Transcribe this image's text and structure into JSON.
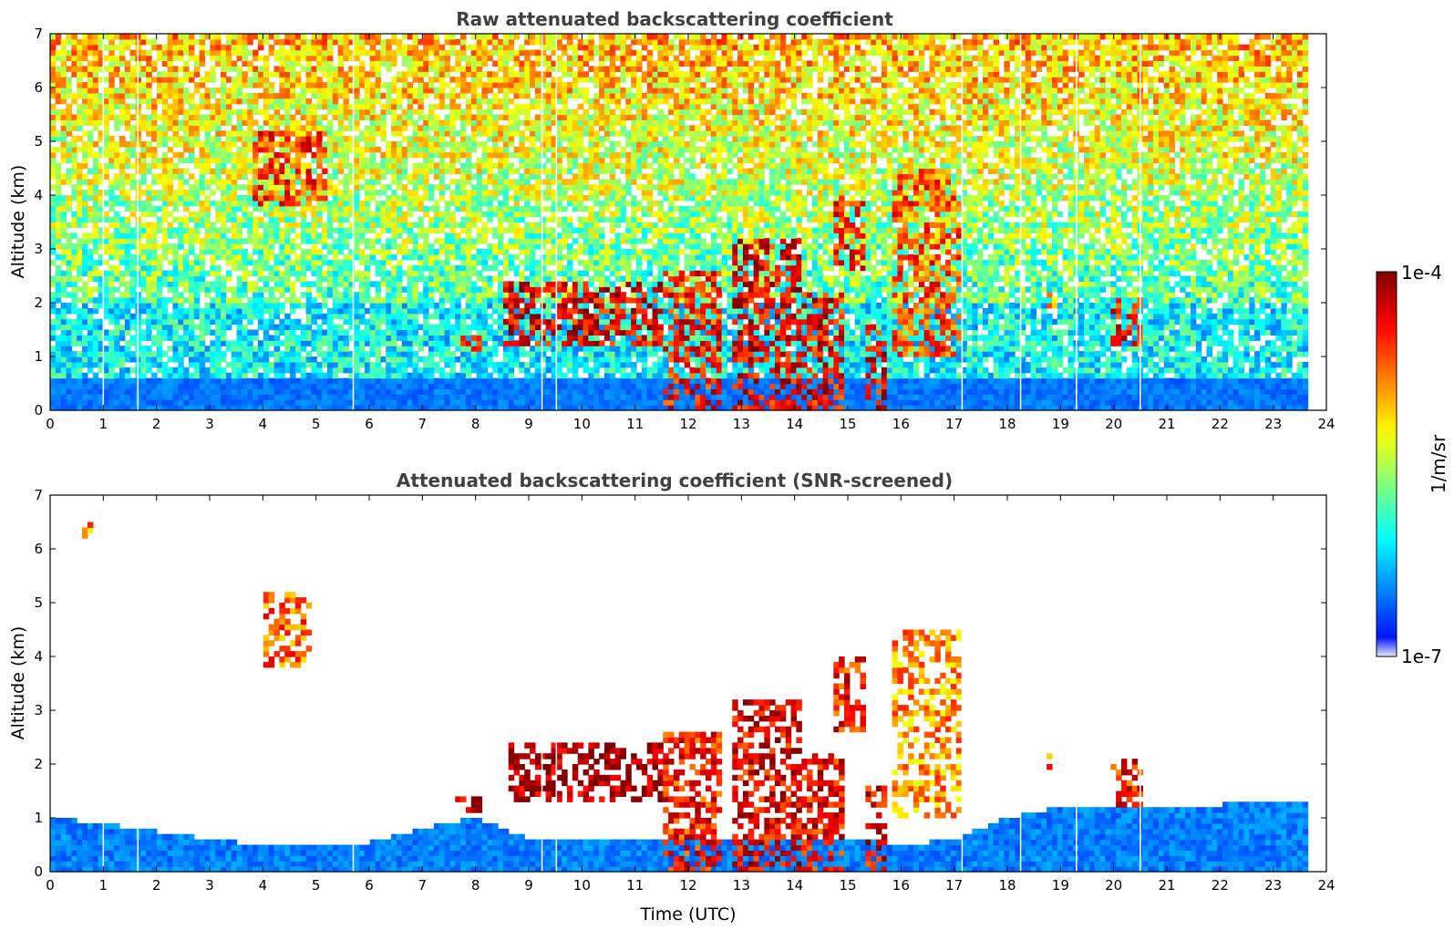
{
  "chart_data": [
    {
      "type": "heatmap",
      "title": "Raw attenuated backscattering coefficient",
      "xlabel": "",
      "ylabel": "Altitude (km)",
      "xlim": [
        0,
        24
      ],
      "ylim": [
        0,
        7
      ],
      "xticks": [
        "0",
        "1",
        "2",
        "3",
        "4",
        "5",
        "6",
        "7",
        "8",
        "9",
        "10",
        "11",
        "12",
        "13",
        "14",
        "15",
        "16",
        "17",
        "18",
        "19",
        "20",
        "21",
        "22",
        "23",
        "24"
      ],
      "yticks": [
        "0",
        "1",
        "2",
        "3",
        "4",
        "5",
        "6",
        "7"
      ],
      "data_end_hour": 23.65,
      "gaps_hours": [
        1.0,
        1.65,
        5.7,
        9.25,
        9.52,
        17.15,
        18.25,
        19.3,
        20.5
      ],
      "features": [
        {
          "kind": "noise-background",
          "note_hours": [
            0,
            23.65
          ]
        },
        {
          "kind": "cloud",
          "t": [
            0.6,
            0.9
          ],
          "z": [
            6.1,
            7.0
          ],
          "level": 0.72
        },
        {
          "kind": "cloud",
          "t": [
            3.8,
            5.2
          ],
          "z": [
            3.8,
            5.2
          ],
          "level": 0.82
        },
        {
          "kind": "cloud",
          "t": [
            7.7,
            8.1
          ],
          "z": [
            1.15,
            1.35
          ],
          "level": 0.88
        },
        {
          "kind": "cloud",
          "t": [
            8.5,
            11.5
          ],
          "z": [
            1.2,
            2.4
          ],
          "level": 0.9
        },
        {
          "kind": "cloud",
          "t": [
            11.5,
            12.6
          ],
          "z": [
            0.0,
            2.6
          ],
          "level": 0.85
        },
        {
          "kind": "cloud",
          "t": [
            12.8,
            14.1
          ],
          "z": [
            0.0,
            3.2
          ],
          "level": 0.9
        },
        {
          "kind": "cloud",
          "t": [
            14.1,
            14.9
          ],
          "z": [
            0.0,
            2.2
          ],
          "level": 0.88
        },
        {
          "kind": "cloud",
          "t": [
            14.7,
            15.3
          ],
          "z": [
            2.6,
            4.0
          ],
          "level": 0.85
        },
        {
          "kind": "cloud",
          "t": [
            15.3,
            15.7
          ],
          "z": [
            0.0,
            1.6
          ],
          "level": 0.9
        },
        {
          "kind": "cloud",
          "t": [
            15.8,
            17.1
          ],
          "z": [
            1.0,
            4.5
          ],
          "level": 0.8
        },
        {
          "kind": "cloud",
          "t": [
            18.7,
            18.9
          ],
          "z": [
            1.95,
            2.15
          ],
          "level": 0.7
        },
        {
          "kind": "cloud",
          "t": [
            19.9,
            20.5
          ],
          "z": [
            1.2,
            2.1
          ],
          "level": 0.85
        }
      ]
    },
    {
      "type": "heatmap",
      "title": "Attenuated backscattering coefficient (SNR-screened)",
      "xlabel": "Time (UTC)",
      "ylabel": "Altitude (km)",
      "xlim": [
        0,
        24
      ],
      "ylim": [
        0,
        7
      ],
      "xticks": [
        "0",
        "1",
        "2",
        "3",
        "4",
        "5",
        "6",
        "7",
        "8",
        "9",
        "10",
        "11",
        "12",
        "13",
        "14",
        "15",
        "16",
        "17",
        "18",
        "19",
        "20",
        "21",
        "22",
        "23",
        "24"
      ],
      "yticks": [
        "0",
        "1",
        "2",
        "3",
        "4",
        "5",
        "6",
        "7"
      ],
      "data_end_hour": 23.65,
      "boundary_layer_top_km": [
        [
          0,
          1.0
        ],
        [
          1,
          0.9
        ],
        [
          2,
          0.75
        ],
        [
          3,
          0.6
        ],
        [
          4,
          0.5
        ],
        [
          5,
          0.5
        ],
        [
          6,
          0.55
        ],
        [
          7,
          0.8
        ],
        [
          8,
          1.0
        ],
        [
          9,
          0.6
        ],
        [
          10,
          0.6
        ],
        [
          11,
          0.6
        ],
        [
          12,
          0.6
        ],
        [
          13,
          0.6
        ],
        [
          14,
          0.6
        ],
        [
          15,
          0.6
        ],
        [
          16,
          0.5
        ],
        [
          17,
          0.6
        ],
        [
          18,
          1.0
        ],
        [
          19,
          1.2
        ],
        [
          20,
          1.2
        ],
        [
          21,
          1.2
        ],
        [
          22,
          1.25
        ],
        [
          23,
          1.3
        ],
        [
          23.65,
          1.3
        ]
      ],
      "features": [
        {
          "kind": "cloud",
          "t": [
            0.6,
            0.8
          ],
          "z": [
            6.2,
            6.5
          ],
          "level": 0.75
        },
        {
          "kind": "cloud",
          "t": [
            4.0,
            4.9
          ],
          "z": [
            3.8,
            5.2
          ],
          "level": 0.78
        },
        {
          "kind": "cloud",
          "t": [
            7.6,
            8.1
          ],
          "z": [
            1.1,
            1.4
          ],
          "level": 0.95
        },
        {
          "kind": "cloud",
          "t": [
            8.6,
            11.5
          ],
          "z": [
            1.3,
            2.4
          ],
          "level": 0.97
        },
        {
          "kind": "cloud",
          "t": [
            11.5,
            12.6
          ],
          "z": [
            0.0,
            2.6
          ],
          "level": 0.85
        },
        {
          "kind": "cloud",
          "t": [
            12.8,
            14.1
          ],
          "z": [
            0.0,
            3.2
          ],
          "level": 0.9
        },
        {
          "kind": "cloud",
          "t": [
            14.1,
            14.9
          ],
          "z": [
            0.0,
            2.2
          ],
          "level": 0.88
        },
        {
          "kind": "cloud",
          "t": [
            14.7,
            15.3
          ],
          "z": [
            2.6,
            4.0
          ],
          "level": 0.85
        },
        {
          "kind": "cloud",
          "t": [
            15.3,
            15.7
          ],
          "z": [
            0.0,
            1.6
          ],
          "level": 0.9
        },
        {
          "kind": "cloud",
          "t": [
            15.8,
            17.1
          ],
          "z": [
            1.0,
            4.5
          ],
          "level": 0.72
        },
        {
          "kind": "cloud",
          "t": [
            18.7,
            18.9
          ],
          "z": [
            1.95,
            2.15
          ],
          "level": 0.75
        },
        {
          "kind": "cloud",
          "t": [
            19.9,
            20.5
          ],
          "z": [
            1.2,
            2.1
          ],
          "level": 0.85
        }
      ]
    }
  ],
  "colorbar": {
    "label": "1/m/sr",
    "max_label": "1e-4",
    "min_label": "1e-7",
    "colormap": "jet",
    "scale": "log",
    "stops": [
      "#e8e8f8",
      "#0000ff",
      "#00ffff",
      "#ffff00",
      "#ff0000",
      "#800000"
    ]
  }
}
